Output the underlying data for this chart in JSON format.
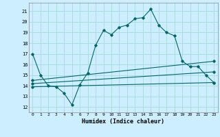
{
  "xlabel": "Humidex (Indice chaleur)",
  "bg_color": "#cceeff",
  "grid_color": "#aadddd",
  "line_color": "#006666",
  "xlim": [
    -0.5,
    23.5
  ],
  "ylim": [
    11.5,
    21.8
  ],
  "yticks": [
    12,
    13,
    14,
    15,
    16,
    17,
    18,
    19,
    20,
    21
  ],
  "xticks": [
    0,
    1,
    2,
    3,
    4,
    5,
    6,
    7,
    8,
    9,
    10,
    11,
    12,
    13,
    14,
    15,
    16,
    17,
    18,
    19,
    20,
    21,
    22,
    23
  ],
  "line1_x": [
    0,
    1,
    2,
    3,
    4,
    5,
    6,
    7,
    8,
    9,
    10,
    11,
    12,
    13,
    14,
    15,
    16,
    17,
    18,
    19,
    20,
    21,
    22,
    23
  ],
  "line1_y": [
    17.0,
    15.0,
    14.0,
    13.9,
    13.3,
    12.2,
    14.1,
    15.2,
    17.8,
    19.2,
    18.8,
    19.5,
    19.7,
    20.3,
    20.4,
    21.2,
    19.7,
    19.0,
    18.7,
    16.3,
    15.8,
    15.8,
    15.0,
    14.3
  ],
  "line2_x": [
    0,
    23
  ],
  "line2_y": [
    13.9,
    14.3
  ],
  "line3_x": [
    0,
    23
  ],
  "line3_y": [
    14.2,
    15.3
  ],
  "line4_x": [
    0,
    23
  ],
  "line4_y": [
    14.5,
    16.3
  ]
}
